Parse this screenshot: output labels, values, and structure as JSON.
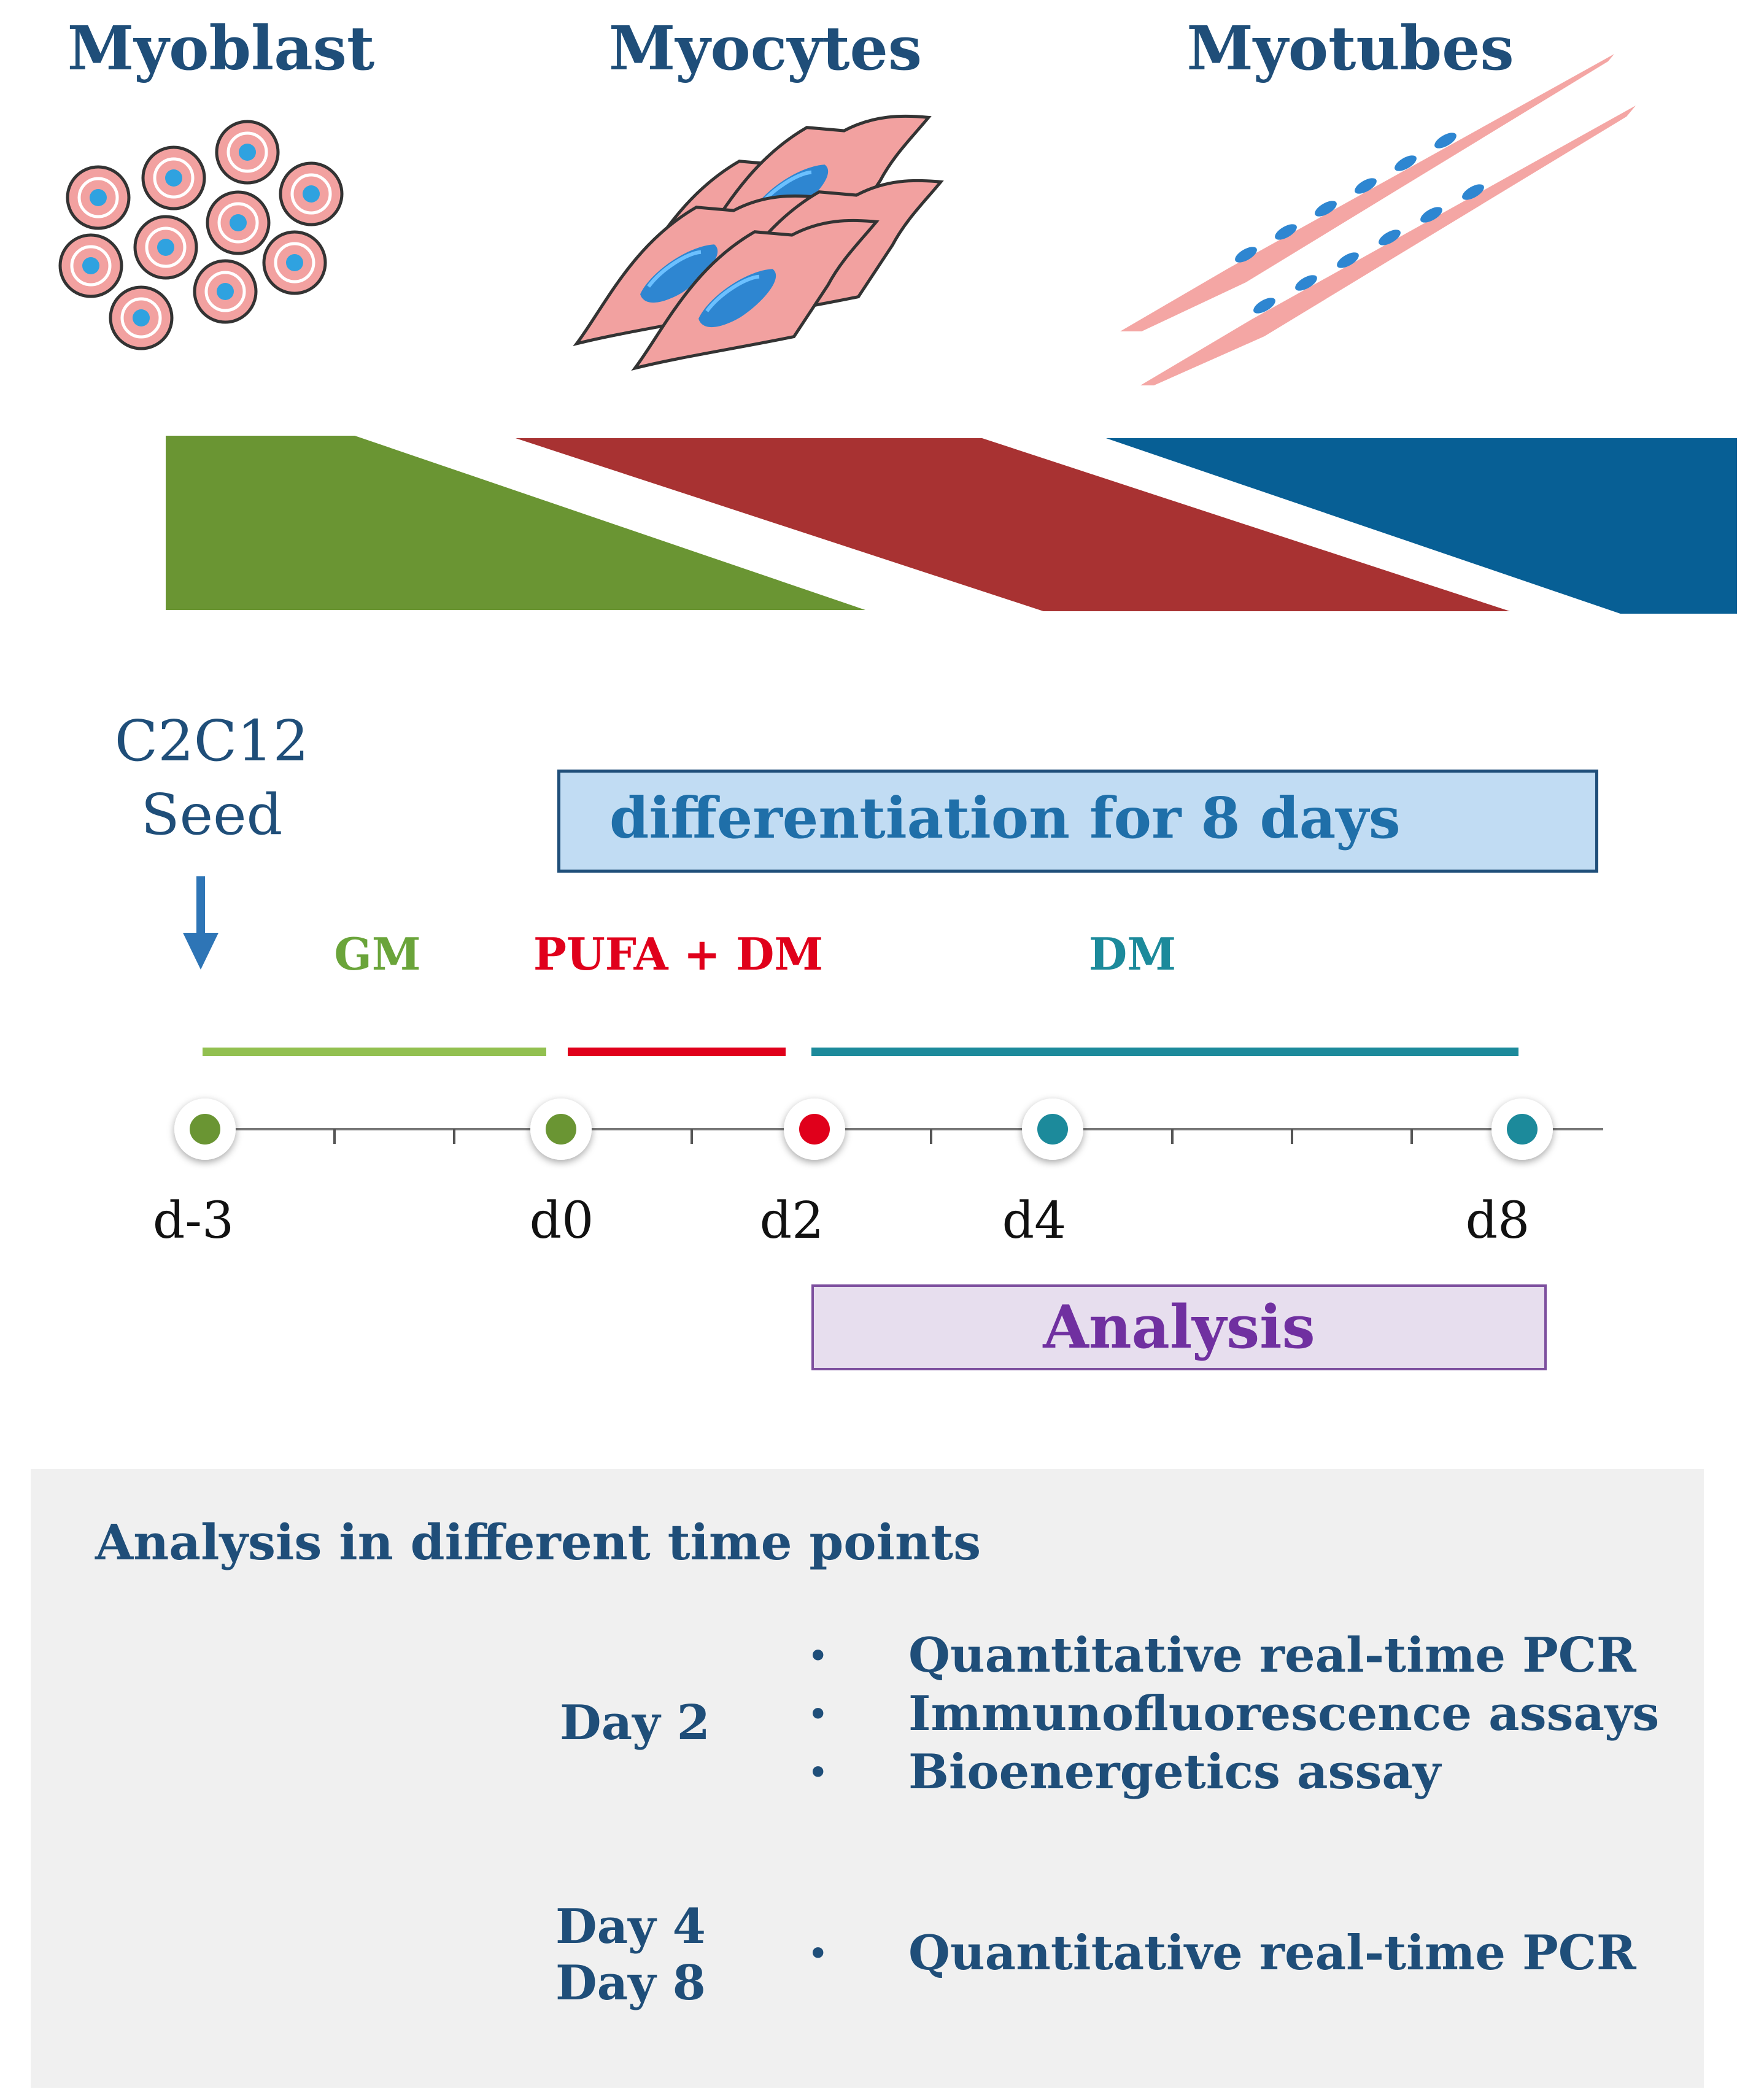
{
  "stages": [
    "Myoblast",
    "Myocytes",
    "Myotubes"
  ],
  "seed": {
    "line1": "C2C12",
    "line2": "Seed"
  },
  "differentiation_label": "differentiation for 8 days",
  "media": [
    {
      "label": "GM",
      "color": "#6aa43a"
    },
    {
      "label": "PUFA + DM",
      "color": "#e0001b"
    },
    {
      "label": "DM",
      "color": "#1c8a9b"
    }
  ],
  "timeline": {
    "days": [
      "d-3",
      "d0",
      "d2",
      "d4",
      "d8"
    ]
  },
  "analysis_label": "Analysis",
  "panel": {
    "title": "Analysis in different time points",
    "groups": [
      {
        "day_lines": [
          "Day 2"
        ],
        "items": [
          "Quantitative real-time PCR",
          "Immunofluorescence assays",
          "Bioenergetics assay"
        ]
      },
      {
        "day_lines": [
          "Day 4",
          "Day 8"
        ],
        "items": [
          "Quantitative real-time PCR"
        ]
      }
    ]
  },
  "colors": {
    "green": "#6a9533",
    "red": "#a83232",
    "blue": "#075f95",
    "navy": "#1f4e79"
  }
}
